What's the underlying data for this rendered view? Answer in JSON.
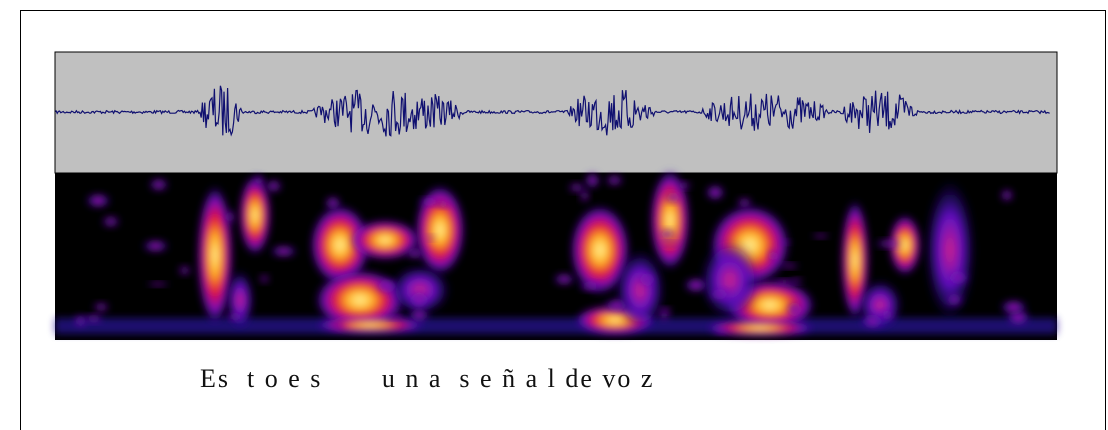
{
  "caption": "Es  t o e s       u n a  s e ñ a l de vo z"
}
